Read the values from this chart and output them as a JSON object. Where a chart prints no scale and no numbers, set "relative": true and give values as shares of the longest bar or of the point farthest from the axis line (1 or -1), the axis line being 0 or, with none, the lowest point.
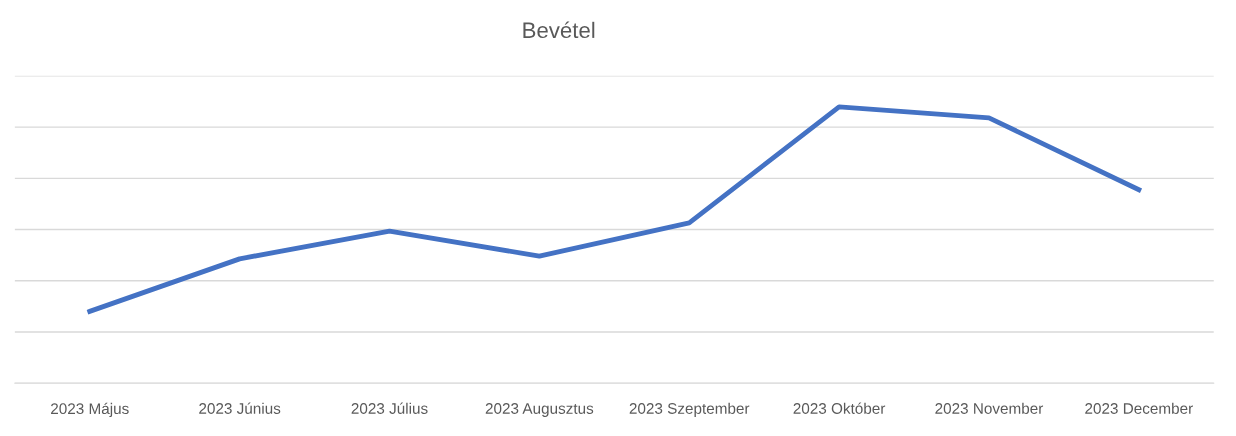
{
  "chart_data": {
    "type": "line",
    "title": "Bevétel",
    "relative": true,
    "categories": [
      "2023 Május",
      "2023 Június",
      "2023 Július",
      "2023 Augusztus",
      "2023 Szeptember",
      "2023 Október",
      "2023 November",
      "2023 December"
    ],
    "series": [
      {
        "color": "#4472c4",
        "values": [
          0.26,
          0.45,
          0.55,
          0.46,
          0.58,
          1,
          0.96,
          0.7
        ]
      }
    ],
    "grid": "y",
    "legend": false,
    "marker": "none",
    "line_style": "solid"
  }
}
